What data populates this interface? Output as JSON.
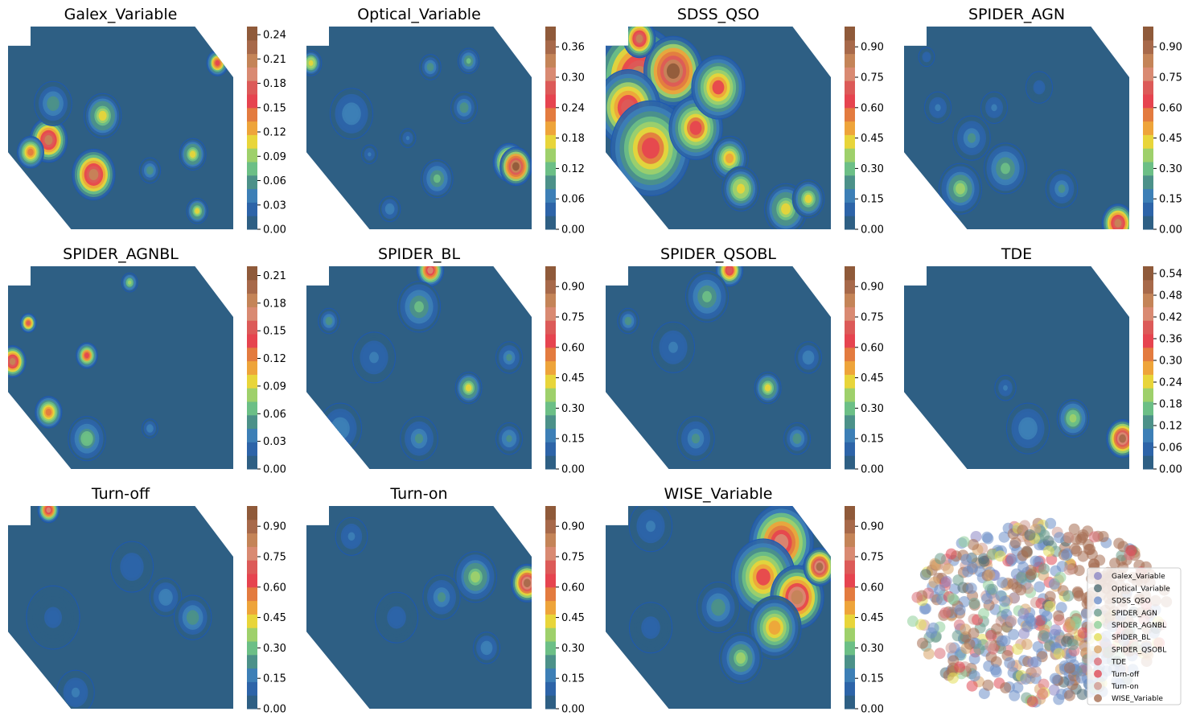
{
  "figure": {
    "colors": {
      "ramp": [
        "#2e5f84",
        "#2d64a8",
        "#3d7fb6",
        "#4c9189",
        "#6cbf86",
        "#9ed06b",
        "#e8d53a",
        "#eea43a",
        "#e37b3f",
        "#e6444f",
        "#dc5a58",
        "#d98a72",
        "#c48458",
        "#a7694a",
        "#8f5a3a"
      ]
    }
  },
  "chart_data": [
    {
      "type": "heatmap",
      "title": "Galex_Variable",
      "colorbar": {
        "vmax": 0.25,
        "ticks": [
          "0.00",
          "0.03",
          "0.06",
          "0.09",
          "0.12",
          "0.15",
          "0.18",
          "0.21",
          "0.24"
        ],
        "tick_values": [
          0,
          0.03,
          0.06,
          0.09,
          0.12,
          0.15,
          0.18,
          0.21,
          0.24
        ]
      },
      "hotspots": [
        [
          0.18,
          0.56,
          0.07,
          0.2
        ],
        [
          0.1,
          0.62,
          0.05,
          0.14
        ],
        [
          0.42,
          0.44,
          0.07,
          0.1
        ],
        [
          0.38,
          0.73,
          0.08,
          0.2
        ],
        [
          0.63,
          0.71,
          0.04,
          0.06
        ],
        [
          0.82,
          0.63,
          0.05,
          0.1
        ],
        [
          0.84,
          0.91,
          0.04,
          0.1
        ],
        [
          0.93,
          0.18,
          0.04,
          0.16
        ],
        [
          0.2,
          0.38,
          0.07,
          0.06
        ]
      ]
    },
    {
      "type": "heatmap",
      "title": "Optical_Variable",
      "colorbar": {
        "vmax": 0.4,
        "ticks": [
          "0.00",
          "0.06",
          "0.12",
          "0.18",
          "0.24",
          "0.30",
          "0.36"
        ],
        "tick_values": [
          0,
          0.06,
          0.12,
          0.18,
          0.24,
          0.3,
          0.36
        ]
      },
      "hotspots": [
        [
          0.02,
          0.18,
          0.04,
          0.18
        ],
        [
          0.2,
          0.43,
          0.08,
          0.08
        ],
        [
          0.55,
          0.2,
          0.04,
          0.1
        ],
        [
          0.72,
          0.17,
          0.04,
          0.12
        ],
        [
          0.7,
          0.4,
          0.05,
          0.1
        ],
        [
          0.45,
          0.55,
          0.03,
          0.06
        ],
        [
          0.28,
          0.63,
          0.03,
          0.06
        ],
        [
          0.9,
          0.67,
          0.06,
          0.3
        ],
        [
          0.93,
          0.69,
          0.06,
          0.38
        ],
        [
          0.58,
          0.75,
          0.06,
          0.12
        ],
        [
          0.37,
          0.9,
          0.04,
          0.08
        ]
      ]
    },
    {
      "type": "heatmap",
      "title": "SDSS_QSO",
      "colorbar": {
        "vmax": 1.0,
        "ticks": [
          "0.00",
          "0.15",
          "0.30",
          "0.45",
          "0.60",
          "0.75",
          "0.90"
        ],
        "tick_values": [
          0,
          0.15,
          0.3,
          0.45,
          0.6,
          0.75,
          0.9
        ]
      },
      "hotspots": [
        [
          0.15,
          0.25,
          0.16,
          0.8
        ],
        [
          0.3,
          0.22,
          0.11,
          0.95
        ],
        [
          0.1,
          0.4,
          0.12,
          0.7
        ],
        [
          0.2,
          0.6,
          0.15,
          0.62
        ],
        [
          0.4,
          0.5,
          0.1,
          0.62
        ],
        [
          0.5,
          0.3,
          0.1,
          0.6
        ],
        [
          0.55,
          0.65,
          0.07,
          0.5
        ],
        [
          0.6,
          0.8,
          0.07,
          0.45
        ],
        [
          0.8,
          0.9,
          0.08,
          0.4
        ],
        [
          0.9,
          0.85,
          0.06,
          0.4
        ],
        [
          0.15,
          0.06,
          0.06,
          0.8
        ]
      ]
    },
    {
      "type": "heatmap",
      "title": "SPIDER_AGN",
      "colorbar": {
        "vmax": 1.0,
        "ticks": [
          "0.00",
          "0.15",
          "0.30",
          "0.45",
          "0.60",
          "0.75",
          "0.90"
        ],
        "tick_values": [
          0,
          0.15,
          0.3,
          0.45,
          0.6,
          0.75,
          0.9
        ]
      },
      "hotspots": [
        [
          0.95,
          0.97,
          0.06,
          0.8
        ],
        [
          0.25,
          0.8,
          0.08,
          0.35
        ],
        [
          0.45,
          0.7,
          0.08,
          0.3
        ],
        [
          0.7,
          0.8,
          0.06,
          0.2
        ],
        [
          0.3,
          0.55,
          0.07,
          0.2
        ],
        [
          0.15,
          0.4,
          0.05,
          0.15
        ],
        [
          0.1,
          0.15,
          0.03,
          0.12
        ],
        [
          0.6,
          0.3,
          0.05,
          0.1
        ],
        [
          0.4,
          0.4,
          0.05,
          0.14
        ]
      ]
    },
    {
      "type": "heatmap",
      "title": "SPIDER_AGNBL",
      "colorbar": {
        "vmax": 0.22,
        "ticks": [
          "0.00",
          "0.03",
          "0.06",
          "0.09",
          "0.12",
          "0.15",
          "0.18",
          "0.21"
        ],
        "tick_values": [
          0,
          0.03,
          0.06,
          0.09,
          0.12,
          0.15,
          0.18,
          0.21
        ]
      },
      "hotspots": [
        [
          0.02,
          0.47,
          0.05,
          0.18
        ],
        [
          0.09,
          0.28,
          0.03,
          0.15
        ],
        [
          0.35,
          0.44,
          0.04,
          0.14
        ],
        [
          0.18,
          0.72,
          0.05,
          0.13
        ],
        [
          0.35,
          0.85,
          0.07,
          0.07
        ],
        [
          0.54,
          0.08,
          0.03,
          0.08
        ],
        [
          0.63,
          0.8,
          0.03,
          0.04
        ]
      ]
    },
    {
      "type": "heatmap",
      "title": "SPIDER_BL",
      "colorbar": {
        "vmax": 1.0,
        "ticks": [
          "0.00",
          "0.15",
          "0.30",
          "0.45",
          "0.60",
          "0.75",
          "0.90"
        ],
        "tick_values": [
          0,
          0.15,
          0.3,
          0.45,
          0.6,
          0.75,
          0.9
        ]
      },
      "hotspots": [
        [
          0.55,
          0.02,
          0.05,
          0.75
        ],
        [
          0.5,
          0.2,
          0.08,
          0.3
        ],
        [
          0.72,
          0.6,
          0.05,
          0.4
        ],
        [
          0.1,
          0.27,
          0.04,
          0.25
        ],
        [
          0.3,
          0.45,
          0.08,
          0.15
        ],
        [
          0.9,
          0.45,
          0.05,
          0.2
        ],
        [
          0.9,
          0.85,
          0.05,
          0.22
        ],
        [
          0.15,
          0.8,
          0.08,
          0.18
        ],
        [
          0.5,
          0.85,
          0.07,
          0.2
        ]
      ]
    },
    {
      "type": "heatmap",
      "title": "SPIDER_QSOBL",
      "colorbar": {
        "vmax": 1.0,
        "ticks": [
          "0.00",
          "0.15",
          "0.30",
          "0.45",
          "0.60",
          "0.75",
          "0.90"
        ],
        "tick_values": [
          0,
          0.15,
          0.3,
          0.45,
          0.6,
          0.75,
          0.9
        ]
      },
      "hotspots": [
        [
          0.55,
          0.02,
          0.05,
          0.7
        ],
        [
          0.45,
          0.15,
          0.08,
          0.3
        ],
        [
          0.72,
          0.6,
          0.05,
          0.42
        ],
        [
          0.1,
          0.27,
          0.04,
          0.25
        ],
        [
          0.3,
          0.4,
          0.08,
          0.15
        ],
        [
          0.9,
          0.45,
          0.05,
          0.18
        ],
        [
          0.85,
          0.85,
          0.05,
          0.25
        ],
        [
          0.4,
          0.85,
          0.07,
          0.2
        ]
      ]
    },
    {
      "type": "heatmap",
      "title": "TDE",
      "colorbar": {
        "vmax": 0.56,
        "ticks": [
          "0.00",
          "0.06",
          "0.12",
          "0.18",
          "0.24",
          "0.30",
          "0.36",
          "0.42",
          "0.48",
          "0.54"
        ],
        "tick_values": [
          0,
          0.06,
          0.12,
          0.18,
          0.24,
          0.3,
          0.36,
          0.42,
          0.48,
          0.54
        ]
      },
      "hotspots": [
        [
          0.97,
          0.85,
          0.06,
          0.5
        ],
        [
          0.75,
          0.75,
          0.06,
          0.2
        ],
        [
          0.55,
          0.8,
          0.08,
          0.1
        ],
        [
          0.45,
          0.6,
          0.04,
          0.08
        ]
      ]
    },
    {
      "type": "heatmap",
      "title": "Turn-off",
      "colorbar": {
        "vmax": 1.0,
        "ticks": [
          "0.00",
          "0.15",
          "0.30",
          "0.45",
          "0.60",
          "0.75",
          "0.90"
        ],
        "tick_values": [
          0,
          0.15,
          0.3,
          0.45,
          0.6,
          0.75,
          0.9
        ]
      },
      "hotspots": [
        [
          0.18,
          0.02,
          0.04,
          0.75
        ],
        [
          0.7,
          0.45,
          0.06,
          0.18
        ],
        [
          0.82,
          0.55,
          0.07,
          0.25
        ],
        [
          0.55,
          0.3,
          0.08,
          0.12
        ],
        [
          0.3,
          0.92,
          0.07,
          0.15
        ],
        [
          0.2,
          0.55,
          0.1,
          0.08
        ]
      ]
    },
    {
      "type": "heatmap",
      "title": "Turn-on",
      "colorbar": {
        "vmax": 1.0,
        "ticks": [
          "0.00",
          "0.15",
          "0.30",
          "0.45",
          "0.60",
          "0.75",
          "0.90"
        ],
        "tick_values": [
          0,
          0.15,
          0.3,
          0.45,
          0.6,
          0.75,
          0.9
        ]
      },
      "hotspots": [
        [
          0.98,
          0.38,
          0.06,
          0.9
        ],
        [
          0.75,
          0.35,
          0.08,
          0.35
        ],
        [
          0.6,
          0.45,
          0.07,
          0.2
        ],
        [
          0.8,
          0.7,
          0.05,
          0.18
        ],
        [
          0.2,
          0.15,
          0.06,
          0.15
        ],
        [
          0.4,
          0.55,
          0.08,
          0.1
        ]
      ]
    },
    {
      "type": "heatmap",
      "title": "WISE_Variable",
      "colorbar": {
        "vmax": 1.0,
        "ticks": [
          "0.00",
          "0.15",
          "0.30",
          "0.45",
          "0.60",
          "0.75",
          "0.90"
        ],
        "tick_values": [
          0,
          0.15,
          0.3,
          0.45,
          0.6,
          0.75,
          0.9
        ]
      },
      "hotspots": [
        [
          0.78,
          0.18,
          0.12,
          0.75
        ],
        [
          0.7,
          0.35,
          0.12,
          0.6
        ],
        [
          0.85,
          0.45,
          0.1,
          0.85
        ],
        [
          0.95,
          0.3,
          0.06,
          0.9
        ],
        [
          0.75,
          0.6,
          0.1,
          0.5
        ],
        [
          0.6,
          0.75,
          0.08,
          0.35
        ],
        [
          0.5,
          0.5,
          0.08,
          0.25
        ],
        [
          0.2,
          0.1,
          0.08,
          0.15
        ],
        [
          0.2,
          0.6,
          0.08,
          0.1
        ]
      ]
    },
    {
      "type": "scatter",
      "title": "",
      "legend": {
        "placement": "right",
        "entries": [
          {
            "name": "Galex_Variable",
            "color": "#8c87c4"
          },
          {
            "name": "Optical_Variable",
            "color": "#4e6d74"
          },
          {
            "name": "SDSS_QSO",
            "color": "#6e8fc9"
          },
          {
            "name": "SPIDER_AGN",
            "color": "#6e9e8e"
          },
          {
            "name": "SPIDER_AGNBL",
            "color": "#8fcf9a"
          },
          {
            "name": "SPIDER_BL",
            "color": "#e3df5a"
          },
          {
            "name": "SPIDER_QSOBL",
            "color": "#d9a468"
          },
          {
            "name": "TDE",
            "color": "#db6f78"
          },
          {
            "name": "Turn-off",
            "color": "#e04a55"
          },
          {
            "name": "Turn-on",
            "color": "#cf9a91"
          },
          {
            "name": "WISE_Variable",
            "color": "#a66e52"
          }
        ]
      },
      "point_count": 620
    }
  ]
}
